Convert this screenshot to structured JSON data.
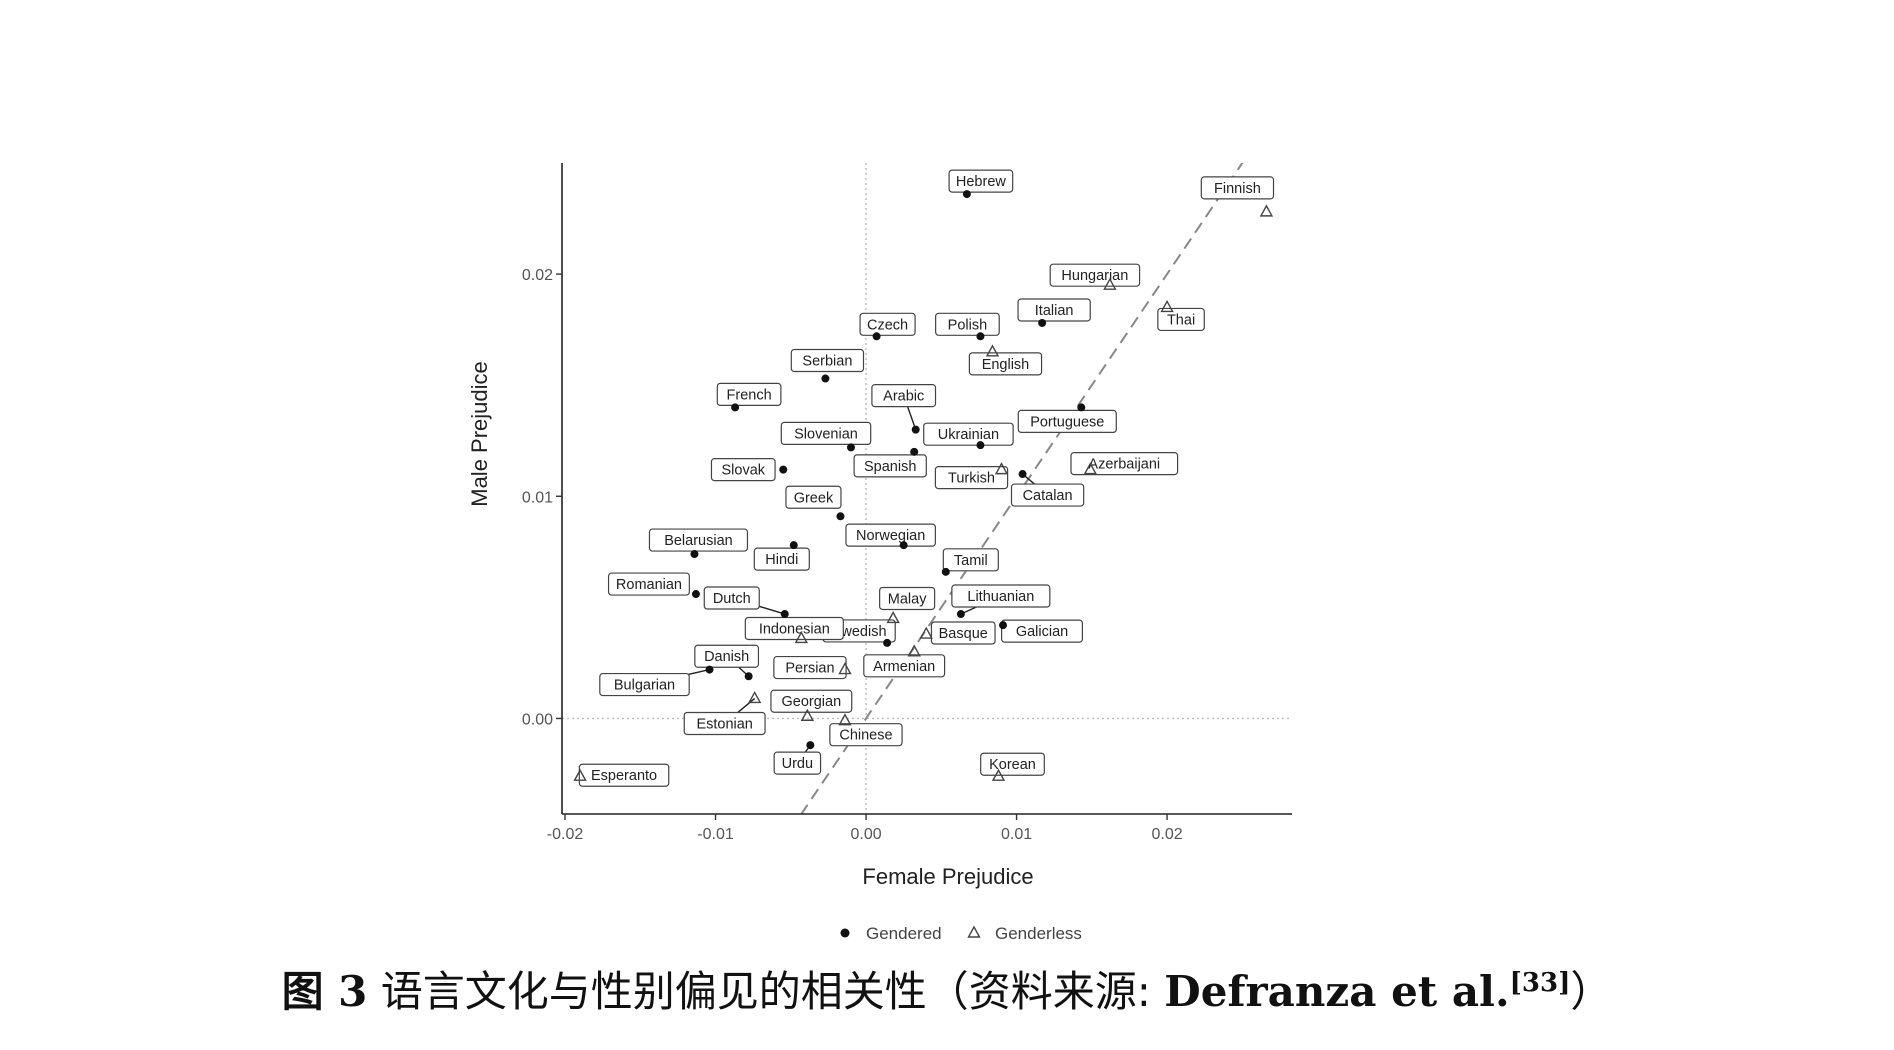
{
  "caption": {
    "figure": "图 3",
    "text": "语言文化与性别偏见的相关性（资料来源: ",
    "author": "Defranza et al.",
    "ref": "[33]",
    "close": "）"
  },
  "chart_data": {
    "type": "scatter",
    "xlabel": "Female Prejudice",
    "ylabel": "Male Prejudice",
    "xlim": [
      -0.0202,
      0.0283
    ],
    "ylim": [
      -0.0043,
      0.025
    ],
    "x_ticks": [
      -0.02,
      -0.01,
      0.0,
      0.01,
      0.02
    ],
    "x_tick_labels": [
      "-0.02",
      "-0.01",
      "0.00",
      "0.01",
      "0.02"
    ],
    "y_ticks": [
      0.0,
      0.01,
      0.02
    ],
    "y_tick_labels": [
      "0.00",
      "0.01",
      "0.02"
    ],
    "grid": false,
    "reference_lines": {
      "x": 0,
      "y": 0,
      "diagonal": "y = x"
    },
    "legend": {
      "placement": "bottom",
      "entries": [
        {
          "name": "Gendered",
          "marker": "filled-circle"
        },
        {
          "name": "Genderless",
          "marker": "open-triangle"
        }
      ]
    },
    "series": [
      {
        "name": "Gendered",
        "points": [
          {
            "label": "Hebrew",
            "x": 0.0067,
            "y": 0.0236
          },
          {
            "label": "Czech",
            "x": 0.0007,
            "y": 0.0172
          },
          {
            "label": "Polish",
            "x": 0.0076,
            "y": 0.0172
          },
          {
            "label": "Italian",
            "x": 0.0117,
            "y": 0.0178
          },
          {
            "label": "Serbian",
            "x": -0.0027,
            "y": 0.0153
          },
          {
            "label": "French",
            "x": -0.0087,
            "y": 0.014
          },
          {
            "label": "Arabic",
            "x": 0.0033,
            "y": 0.013
          },
          {
            "label": "Portuguese",
            "x": 0.0143,
            "y": 0.014
          },
          {
            "label": "Slovenian",
            "x": -0.001,
            "y": 0.0122
          },
          {
            "label": "Ukrainian",
            "x": 0.0076,
            "y": 0.0123
          },
          {
            "label": "Spanish",
            "x": 0.0032,
            "y": 0.012
          },
          {
            "label": "Slovak",
            "x": -0.0055,
            "y": 0.0112
          },
          {
            "label": "Catalan",
            "x": 0.0104,
            "y": 0.011
          },
          {
            "label": "Greek",
            "x": -0.0017,
            "y": 0.0091
          },
          {
            "label": "Norwegian",
            "x": 0.0025,
            "y": 0.0078
          },
          {
            "label": "Belarusian",
            "x": -0.0114,
            "y": 0.0074
          },
          {
            "label": "Hindi",
            "x": -0.0048,
            "y": 0.0078
          },
          {
            "label": "Tamil",
            "x": 0.0053,
            "y": 0.0066
          },
          {
            "label": "Romanian",
            "x": -0.0113,
            "y": 0.0056
          },
          {
            "label": "Dutch",
            "x": -0.0054,
            "y": 0.0047
          },
          {
            "label": "Lithuanian",
            "x": 0.0063,
            "y": 0.0047
          },
          {
            "label": "Galician",
            "x": 0.0091,
            "y": 0.0042
          },
          {
            "label": "Swedish",
            "x": 0.0014,
            "y": 0.0034
          },
          {
            "label": "Bulgarian",
            "x": -0.0104,
            "y": 0.0022
          },
          {
            "label": "Danish",
            "x": -0.0078,
            "y": 0.0019
          },
          {
            "label": "Urdu",
            "x": -0.0037,
            "y": -0.0012
          }
        ]
      },
      {
        "name": "Genderless",
        "points": [
          {
            "label": "Finnish",
            "x": 0.0266,
            "y": 0.0228
          },
          {
            "label": "Hungarian",
            "x": 0.0162,
            "y": 0.0195
          },
          {
            "label": "Thai",
            "x": 0.02,
            "y": 0.0185
          },
          {
            "label": "English",
            "x": 0.0084,
            "y": 0.0165
          },
          {
            "label": "Azerbaijani",
            "x": 0.0149,
            "y": 0.0112
          },
          {
            "label": "Turkish",
            "x": 0.009,
            "y": 0.0112
          },
          {
            "label": "Malay",
            "x": 0.0018,
            "y": 0.0045
          },
          {
            "label": "Basque",
            "x": 0.004,
            "y": 0.0038
          },
          {
            "label": "Indonesian",
            "x": -0.0043,
            "y": 0.0036
          },
          {
            "label": "Armenian",
            "x": 0.0032,
            "y": 0.003
          },
          {
            "label": "Persian",
            "x": -0.0014,
            "y": 0.0022
          },
          {
            "label": "Estonian",
            "x": -0.0074,
            "y": 0.0009
          },
          {
            "label": "Georgian",
            "x": -0.0039,
            "y": 0.0001
          },
          {
            "label": "Chinese",
            "x": -0.0014,
            "y": -0.0001
          },
          {
            "label": "Korean",
            "x": 0.0088,
            "y": -0.0026
          },
          {
            "label": "Esperanto",
            "x": -0.019,
            "y": -0.0026
          }
        ]
      }
    ]
  }
}
